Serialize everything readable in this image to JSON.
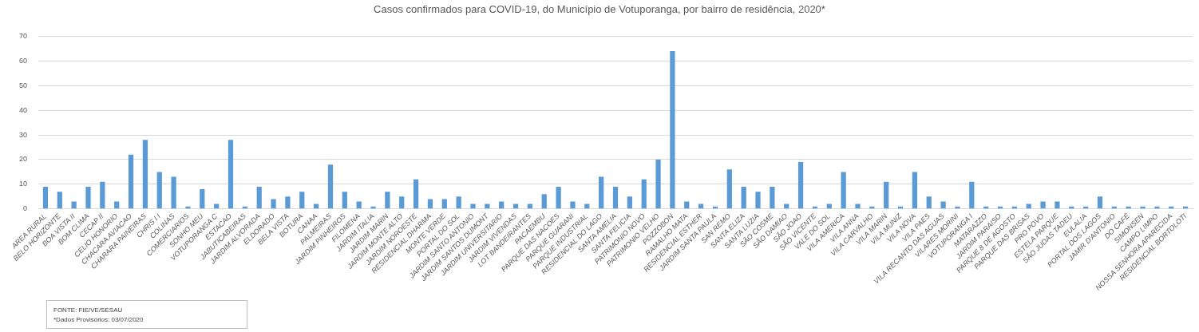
{
  "chart_data": {
    "type": "bar",
    "title": "Casos confirmados para COVID-19, do Município de Votuporanga, por bairro de residência, 2020*",
    "categories": [
      "AREA RURAL",
      "BELO HORIZONTE",
      "BOA VISTA II",
      "BOM CLIMA",
      "CECAP II",
      "CELIO HONORIO",
      "CHACARA AVIACAO",
      "CHARARA PAINEIRAS",
      "CHRIS I I",
      "COLINAS",
      "COMERCIARIOS",
      "SONHO MEU",
      "VOTUPORANGA C",
      "ESTACAO",
      "JABUTICABEIRAS",
      "JARDIM ALVORADA",
      "ELDORADO",
      "BELA VISTA",
      "BOTURA",
      "CANAA",
      "PALMEIRAS",
      "JARDIM PINHEIROS",
      "FILOMENA",
      "JARDIM ITALIA",
      "JARDIM MARIN",
      "JARDIM MONTE ALTO",
      "JARDIM NOROESTE",
      "RESIDENCIAL DHARMA",
      "MONTE VERDE",
      "PORTAL DO SOL",
      "JARDIM SANTO ANTONIO",
      "JARDIM SANTOS DUMONT",
      "JARDIM UNIVERSITARIO",
      "JARDIM VIVENDAS",
      "LOT BANDEIRANTES",
      "PACAEMBU",
      "PARQUE DAS NACOES",
      "PARQUE GUARANI",
      "PARQUE INDUSTRIAL",
      "RESIDENCIAL DO LAGO",
      "SANTA AMELIA",
      "SANTA FELICIA",
      "PATRIMONIO NOVO",
      "PATRIMONIO VELHO",
      "POZZOBON",
      "RAMALHO MATA",
      "RESIDENCIAL ESTHER",
      "JARDIM SANTA PAULA",
      "SAN REMO",
      "SANTA ELIZA",
      "SANTA LUZIA",
      "SÃO COSME",
      "SÃO DAMIAO",
      "SÃO JOAO",
      "SÃO VICENTE",
      "VALE DO SOL",
      "VILA AMERICA",
      "VILA ANNA",
      "VILA CARVALHO",
      "VILA MARIN",
      "VILA MUNIZ",
      "VILA NOVA",
      "VILA PAES",
      "VILA RECANTO DAS AGUAS",
      "VILARES MORINI",
      "VOTUPORANGA I",
      "MATARAZZO",
      "JARDIM PARAISO",
      "PARQUE 8 DE AGOSTO",
      "PARQUE DAS BRISAS",
      "PRO POVO",
      "ESTELA PARQUE",
      "SÃO JUDAS TADEU",
      "EULALIA",
      "PORTAL DOS LAGOS",
      "JAMIR D'ANTONIO",
      "DO CAFÉ",
      "SIMONSEN",
      "CAMPO LIMPO",
      "NOSSA SENHORA APARECIDA",
      "RESIDENCIAL BORTOLOTI"
    ],
    "values": [
      9,
      7,
      3,
      9,
      11,
      3,
      22,
      28,
      15,
      13,
      1,
      8,
      2,
      28,
      1,
      9,
      4,
      5,
      7,
      2,
      18,
      7,
      3,
      1,
      7,
      5,
      12,
      4,
      4,
      5,
      2,
      2,
      3,
      2,
      2,
      6,
      9,
      3,
      2,
      13,
      9,
      5,
      12,
      20,
      64,
      3,
      2,
      1,
      16,
      9,
      7,
      9,
      2,
      19,
      1,
      2,
      15,
      2,
      1,
      11,
      1,
      15,
      5,
      3,
      1,
      11,
      1,
      1,
      1,
      2,
      3,
      3,
      1,
      1,
      5,
      1,
      1,
      1,
      1,
      1,
      1
    ],
    "color": "#5b9bd5",
    "ylim": [
      0,
      70
    ],
    "yticks": [
      0,
      10,
      20,
      30,
      40,
      50,
      60,
      70
    ],
    "grid": "y",
    "legend": false,
    "annotations": [
      "FONTE: FIE/VE/SESAU",
      "*Dados Provisórios: 03/07/2020"
    ]
  }
}
